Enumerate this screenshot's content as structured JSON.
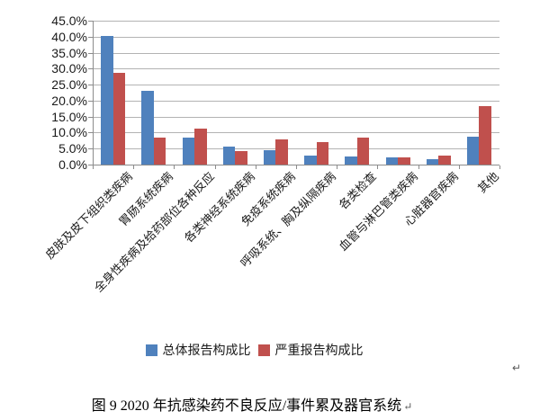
{
  "page": {
    "background": "#ffffff",
    "return_mark": "↵"
  },
  "chart_data": {
    "type": "bar",
    "title": "",
    "xlabel": "",
    "ylabel": "",
    "categories": [
      "皮肤及皮下组织类疾病",
      "胃肠系统疾病",
      "全身性疾病及给药部位各种反应",
      "各类神经系统疾病",
      "免疫系统疾病",
      "呼吸系统、胸及纵隔疾病",
      "各类检查",
      "血管与淋巴管类疾病",
      "心脏器官疾病",
      "其他"
    ],
    "series": [
      {
        "name": "总体报告构成比",
        "color": "#4f81bd",
        "values": [
          40.3,
          23.1,
          8.4,
          5.5,
          4.4,
          2.8,
          2.5,
          2.2,
          1.8,
          8.8
        ]
      },
      {
        "name": "严重报告构成比",
        "color": "#c0504d",
        "values": [
          28.8,
          8.4,
          11.2,
          4.3,
          8.0,
          7.1,
          8.4,
          2.2,
          2.8,
          18.4
        ]
      }
    ],
    "ylim": [
      0,
      45
    ],
    "yticks": [
      {
        "value": 0,
        "label": "0.0%"
      },
      {
        "value": 5,
        "label": "5.0%"
      },
      {
        "value": 10,
        "label": "10.0%"
      },
      {
        "value": 15,
        "label": "15.0%"
      },
      {
        "value": 20,
        "label": "20.0%"
      },
      {
        "value": 25,
        "label": "25.0%"
      },
      {
        "value": 30,
        "label": "30.0%"
      },
      {
        "value": 35,
        "label": "35.0%"
      },
      {
        "value": 40,
        "label": "40.0%"
      },
      {
        "value": 45,
        "label": "45.0%"
      }
    ],
    "grid": true,
    "legend_position": "bottom",
    "style": {
      "grid_color": "#b3b3b3",
      "axis_color": "#8c8c8c",
      "text_color": "#1a1a1a"
    }
  },
  "caption": {
    "text": "图 9  2020 年抗感染药不良反应/事件累及器官系统",
    "return_mark": "↵"
  }
}
